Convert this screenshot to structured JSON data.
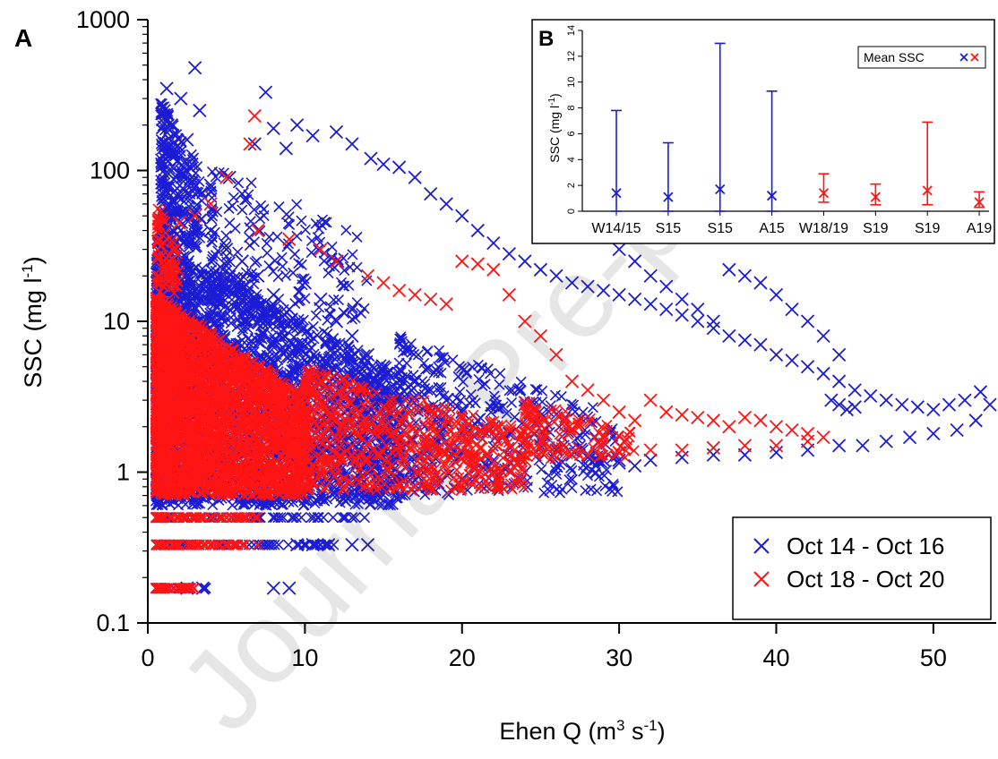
{
  "chart_data": [
    {
      "type": "scatter",
      "panel_label": "A",
      "xlabel_base": "Ehen Q (m",
      "xlabel_sup1": "3",
      "xlabel_mid": " s",
      "xlabel_sup2": "-1",
      "xlabel_end": ")",
      "ylabel_base": "SSC (mg l",
      "ylabel_sup": "-1",
      "ylabel_end": ")",
      "xlim": [
        0,
        54
      ],
      "ylim": [
        0.1,
        1000
      ],
      "yscale": "log",
      "x_ticks": [
        "0",
        "10",
        "20",
        "30",
        "40",
        "50"
      ],
      "y_ticks": [
        "0.1",
        "1",
        "10",
        "100",
        "1000"
      ],
      "legend_position": "bottom-right",
      "series": [
        {
          "name": "Oct 14 - Oct 16",
          "color": "#1c1cd4",
          "marker": "x",
          "points": [
            [
              1.2,
              350
            ],
            [
              2.1,
              300
            ],
            [
              3.0,
              480
            ],
            [
              1.5,
              200
            ],
            [
              2.5,
              160
            ],
            [
              3.3,
              250
            ],
            [
              1.1,
              120
            ],
            [
              1.8,
              90
            ],
            [
              2.8,
              110
            ],
            [
              4.0,
              80
            ],
            [
              5.2,
              90
            ],
            [
              6.0,
              70
            ],
            [
              6.8,
              150
            ],
            [
              7.5,
              330
            ],
            [
              8.0,
              190
            ],
            [
              8.8,
              140
            ],
            [
              9.5,
              200
            ],
            [
              10.5,
              170
            ],
            [
              12.0,
              180
            ],
            [
              13.0,
              150
            ],
            [
              14.2,
              120
            ],
            [
              15.0,
              110
            ],
            [
              16.0,
              105
            ],
            [
              17.0,
              90
            ],
            [
              18.0,
              70
            ],
            [
              19.0,
              60
            ],
            [
              20.0,
              50
            ],
            [
              21.0,
              40
            ],
            [
              22.0,
              33
            ],
            [
              23.0,
              28
            ],
            [
              24.0,
              25
            ],
            [
              25.0,
              22
            ],
            [
              26.0,
              20
            ],
            [
              27.0,
              18
            ],
            [
              28.0,
              17
            ],
            [
              29.0,
              16
            ],
            [
              30.0,
              15
            ],
            [
              31.0,
              14
            ],
            [
              32.0,
              13
            ],
            [
              33.0,
              12
            ],
            [
              34.0,
              11
            ],
            [
              35.0,
              10
            ],
            [
              36.0,
              9
            ],
            [
              37.0,
              8
            ],
            [
              38.0,
              7.5
            ],
            [
              39.0,
              7
            ],
            [
              40.0,
              6
            ],
            [
              41.0,
              5.5
            ],
            [
              42.0,
              5
            ],
            [
              43.0,
              4.5
            ],
            [
              44.0,
              4
            ],
            [
              45.0,
              3.5
            ],
            [
              46.0,
              3.2
            ],
            [
              47.0,
              3
            ],
            [
              48.0,
              2.8
            ],
            [
              49.0,
              2.7
            ],
            [
              50.0,
              2.6
            ],
            [
              51.0,
              2.8
            ],
            [
              52.0,
              3.0
            ],
            [
              53.0,
              3.4
            ],
            [
              53.6,
              2.8
            ],
            [
              52.7,
              2.2
            ],
            [
              51.5,
              1.9
            ],
            [
              50.0,
              1.8
            ],
            [
              48.5,
              1.7
            ],
            [
              47.0,
              1.6
            ],
            [
              45.5,
              1.5
            ],
            [
              44.0,
              1.5
            ],
            [
              42.0,
              1.4
            ],
            [
              40.0,
              1.35
            ],
            [
              38.0,
              1.3
            ],
            [
              36.0,
              1.3
            ],
            [
              34.0,
              1.25
            ],
            [
              32.0,
              1.2
            ],
            [
              30.0,
              1.15
            ],
            [
              28.0,
              1.1
            ],
            [
              26.0,
              1.1
            ],
            [
              24.0,
              1.0
            ],
            [
              22.0,
              1.0
            ],
            [
              20.0,
              0.9
            ],
            [
              27.0,
              60
            ],
            [
              28.0,
              50
            ],
            [
              29.0,
              40
            ],
            [
              30.0,
              30
            ],
            [
              31.0,
              25
            ],
            [
              32.0,
              20
            ],
            [
              33.0,
              17
            ],
            [
              34.0,
              14
            ],
            [
              35.0,
              12
            ],
            [
              36.0,
              10
            ],
            [
              37.0,
              22
            ],
            [
              38.0,
              20
            ],
            [
              39.0,
              18
            ],
            [
              40.0,
              15
            ],
            [
              41.0,
              12
            ],
            [
              42.0,
              10
            ],
            [
              43.0,
              8
            ],
            [
              44.0,
              6
            ],
            [
              44.0,
              2.8
            ],
            [
              44.5,
              2.6
            ],
            [
              43.5,
              3.0
            ],
            [
              45.0,
              2.7
            ],
            [
              8.0,
              0.17
            ],
            [
              9.0,
              0.17
            ],
            [
              3.5,
              0.17
            ],
            [
              2.5,
              0.17
            ],
            [
              9.5,
              0.33
            ],
            [
              10.5,
              0.33
            ],
            [
              11.5,
              0.33
            ],
            [
              13.0,
              0.33
            ],
            [
              14.0,
              0.33
            ],
            [
              4.0,
              40
            ],
            [
              5.0,
              30
            ],
            [
              6.0,
              25
            ],
            [
              7.0,
              20
            ],
            [
              8.0,
              15
            ],
            [
              9.0,
              12
            ],
            [
              10.0,
              18
            ],
            [
              11.0,
              14
            ],
            [
              12.0,
              10
            ],
            [
              13.0,
              8
            ],
            [
              14.0,
              6
            ],
            [
              15.0,
              5
            ],
            [
              16.0,
              4.5
            ],
            [
              17.0,
              4
            ],
            [
              18.0,
              3.5
            ],
            [
              19.0,
              3
            ],
            [
              20.0,
              2.5
            ],
            [
              21.0,
              2.2
            ],
            [
              22.0,
              2
            ],
            [
              23.0,
              1.8
            ],
            [
              24.0,
              1.6
            ],
            [
              25.0,
              1.5
            ],
            [
              26.0,
              1.4
            ],
            [
              27.0,
              1.3
            ],
            [
              28.0,
              1.25
            ],
            [
              29.0,
              1.2
            ],
            [
              30.0,
              1.2
            ],
            [
              31.0,
              1.1
            ]
          ],
          "bands": [
            {
              "x": [
                0.5,
                16
              ],
              "y": [
                0.6,
                35
              ],
              "count": 2500
            },
            {
              "x": [
                16,
                30
              ],
              "y": [
                0.7,
                8
              ],
              "count": 400
            },
            {
              "x": [
                0.5,
                12
              ],
              "y": [
                0.33,
                0.33
              ],
              "count": 60
            },
            {
              "x": [
                0.5,
                14
              ],
              "y": [
                0.5,
                0.5
              ],
              "count": 70
            },
            {
              "x": [
                0.5,
                4
              ],
              "y": [
                0.17,
                0.17
              ],
              "count": 30
            },
            {
              "x": [
                0.8,
                3.5
              ],
              "y": [
                30,
                300
              ],
              "count": 250
            },
            {
              "x": [
                4,
                14
              ],
              "y": [
                10,
                120
              ],
              "count": 200
            }
          ]
        },
        {
          "name": "Oct 18 - Oct 20",
          "color": "#ff1414",
          "marker": "x",
          "points": [
            [
              6.8,
              230
            ],
            [
              6.5,
              150
            ],
            [
              5.0,
              90
            ],
            [
              4.0,
              60
            ],
            [
              3.0,
              50
            ],
            [
              2.0,
              45
            ],
            [
              7.0,
              40
            ],
            [
              9.0,
              35
            ],
            [
              11.0,
              30
            ],
            [
              12.0,
              25
            ],
            [
              14.0,
              20
            ],
            [
              15.0,
              18
            ],
            [
              16.0,
              16
            ],
            [
              17.0,
              15
            ],
            [
              18.0,
              14
            ],
            [
              19.0,
              13
            ],
            [
              20.0,
              25
            ],
            [
              21.0,
              24
            ],
            [
              22.0,
              22
            ],
            [
              23.0,
              15
            ],
            [
              24.0,
              10
            ],
            [
              25.0,
              8
            ],
            [
              26.0,
              6
            ],
            [
              27.0,
              4
            ],
            [
              28.0,
              3.5
            ],
            [
              29.0,
              3
            ],
            [
              30.0,
              2.5
            ],
            [
              31.0,
              2.2
            ],
            [
              32.0,
              3.0
            ],
            [
              33.0,
              2.5
            ],
            [
              34.0,
              2.4
            ],
            [
              35.0,
              2.3
            ],
            [
              36.0,
              2.2
            ],
            [
              37.0,
              2.0
            ],
            [
              38.0,
              2.3
            ],
            [
              39.0,
              2.2
            ],
            [
              40.0,
              2.0
            ],
            [
              41.0,
              1.9
            ],
            [
              42.0,
              1.8
            ],
            [
              43.0,
              1.7
            ],
            [
              42.0,
              1.6
            ],
            [
              40.0,
              1.5
            ],
            [
              38.0,
              1.5
            ],
            [
              36.0,
              1.45
            ],
            [
              34.0,
              1.4
            ],
            [
              32.0,
              1.4
            ],
            [
              30.0,
              1.35
            ],
            [
              28.0,
              1.3
            ],
            [
              26.0,
              1.25
            ],
            [
              24.0,
              1.2
            ]
          ],
          "bands": [
            {
              "x": [
                0.5,
                10
              ],
              "y": [
                0.7,
                15
              ],
              "count": 2600
            },
            {
              "x": [
                10,
                24
              ],
              "y": [
                0.75,
                5
              ],
              "count": 600
            },
            {
              "x": [
                24,
                31
              ],
              "y": [
                1.2,
                3
              ],
              "count": 120
            },
            {
              "x": [
                0.5,
                7
              ],
              "y": [
                0.5,
                0.5
              ],
              "count": 70
            },
            {
              "x": [
                0.5,
                7
              ],
              "y": [
                0.33,
                0.33
              ],
              "count": 70
            },
            {
              "x": [
                0.5,
                3
              ],
              "y": [
                0.17,
                0.17
              ],
              "count": 40
            },
            {
              "x": [
                0.6,
                2
              ],
              "y": [
                15,
                60
              ],
              "count": 80
            }
          ]
        }
      ]
    },
    {
      "type": "errorbar",
      "panel_label": "B",
      "ylabel_base": "SSC (mg l",
      "ylabel_sup": "-1",
      "ylabel_end": ")",
      "ylim": [
        0,
        14
      ],
      "y_ticks": [
        "0",
        "2",
        "4",
        "6",
        "8",
        "10",
        "12",
        "14"
      ],
      "categories": [
        "W14/15",
        "S15",
        "S15",
        "A15",
        "W18/19",
        "S19",
        "S19",
        "A19"
      ],
      "legend_label": "Mean SSC",
      "legend_position": "top-right",
      "series": [
        {
          "color": "#1c1cd4",
          "mean": [
            1.4,
            1.1,
            1.7,
            1.2
          ],
          "upper": [
            7.8,
            5.3,
            13.0,
            9.3
          ],
          "lower": [
            0,
            0,
            0,
            0
          ]
        },
        {
          "color": "#ff1414",
          "mean": [
            1.4,
            1.1,
            1.6,
            0.7
          ],
          "upper": [
            2.9,
            2.1,
            6.9,
            1.5
          ],
          "lower": [
            0.7,
            0.5,
            0.5,
            0.3
          ]
        }
      ]
    }
  ]
}
